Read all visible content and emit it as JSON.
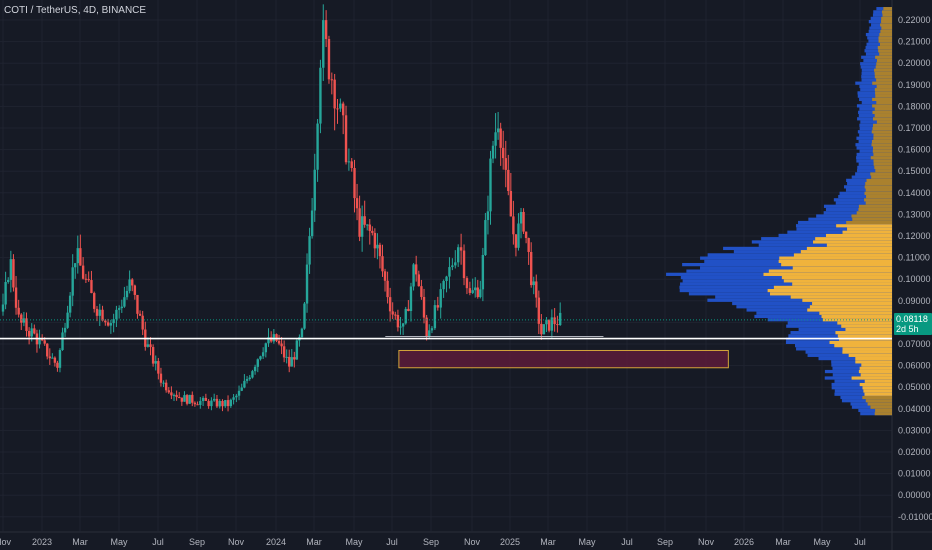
{
  "header": {
    "symbol_title": "COTI / TetherUS, 4D, BINANCE"
  },
  "price_label": {
    "value": "0.08118",
    "countdown": "2d 5h"
  },
  "colors": {
    "background": "#161a25",
    "grid": "#1f2330",
    "up_candle": "#26a69a",
    "down_candle": "#ef5350",
    "volume_profile_blue": "#2151c6",
    "volume_profile_orange": "#e5a01e",
    "value_area_highlight": "#f0b33c",
    "support_line": "#ffffff",
    "zone_fill": "#5c1c3a",
    "zone_border": "#d4a53a",
    "price_tag": "#089981"
  },
  "chart_data": {
    "type": "candlestick",
    "title": "COTI / TetherUS, 4D, BINANCE",
    "x_axis": {
      "tick_labels": [
        "Nov",
        "2023",
        "Mar",
        "May",
        "Jul",
        "Sep",
        "Nov",
        "2024",
        "Mar",
        "May",
        "Jul",
        "Sep",
        "Nov",
        "2025",
        "Mar",
        "May",
        "Jul",
        "Sep",
        "Nov",
        "2026",
        "Mar",
        "May",
        "Jul"
      ]
    },
    "y_axis": {
      "range": [
        -0.012,
        0.226
      ],
      "tick_labels": [
        "0.22000",
        "0.21000",
        "0.20000",
        "0.19000",
        "0.18000",
        "0.17000",
        "0.16000",
        "0.15000",
        "0.14000",
        "0.13000",
        "0.12000",
        "0.11000",
        "0.10000",
        "0.09000",
        "0.08000",
        "0.07000",
        "0.06000",
        "0.05000",
        "0.04000",
        "0.03000",
        "0.02000",
        "0.01000",
        "0.00000",
        "-0.01000"
      ]
    },
    "price_keypoints": [
      [
        2022.83,
        0.085
      ],
      [
        2022.86,
        0.11
      ],
      [
        2022.9,
        0.08
      ],
      [
        2022.96,
        0.075
      ],
      [
        2023.03,
        0.065
      ],
      [
        2023.07,
        0.06
      ],
      [
        2023.15,
        0.112
      ],
      [
        2023.23,
        0.088
      ],
      [
        2023.3,
        0.08
      ],
      [
        2023.38,
        0.098
      ],
      [
        2023.45,
        0.07
      ],
      [
        2023.52,
        0.052
      ],
      [
        2023.6,
        0.045
      ],
      [
        2023.7,
        0.043
      ],
      [
        2023.8,
        0.042
      ],
      [
        2023.85,
        0.048
      ],
      [
        2023.95,
        0.07
      ],
      [
        2024.0,
        0.072
      ],
      [
        2024.06,
        0.06
      ],
      [
        2024.12,
        0.075
      ],
      [
        2024.17,
        0.15
      ],
      [
        2024.2,
        0.215
      ],
      [
        2024.25,
        0.19
      ],
      [
        2024.3,
        0.16
      ],
      [
        2024.35,
        0.125
      ],
      [
        2024.42,
        0.12
      ],
      [
        2024.5,
        0.085
      ],
      [
        2024.55,
        0.076
      ],
      [
        2024.6,
        0.108
      ],
      [
        2024.65,
        0.075
      ],
      [
        2024.7,
        0.088
      ],
      [
        2024.78,
        0.118
      ],
      [
        2024.82,
        0.092
      ],
      [
        2024.87,
        0.098
      ],
      [
        2024.92,
        0.16
      ],
      [
        2024.95,
        0.178
      ],
      [
        2024.98,
        0.145
      ],
      [
        2025.02,
        0.118
      ],
      [
        2025.06,
        0.128
      ],
      [
        2025.1,
        0.098
      ],
      [
        2025.14,
        0.075
      ],
      [
        2025.18,
        0.08
      ],
      [
        2025.22,
        0.081
      ]
    ],
    "last_price": 0.08118,
    "support_level": 0.0725,
    "support_short_line": {
      "price": 0.0735,
      "from": 2024.47,
      "to": 2025.4
    },
    "demand_zone": {
      "price_from": 0.059,
      "price_to": 0.067,
      "date_from": 2024.53,
      "date_to": 2025.93
    },
    "volume_profile": {
      "price_range": [
        0.037,
        0.226
      ],
      "value_area": [
        0.045,
        0.125
      ],
      "total_profile": [
        [
          0.037,
          0.03
        ],
        [
          0.045,
          0.052
        ],
        [
          0.055,
          0.06
        ],
        [
          0.06,
          0.055
        ],
        [
          0.065,
          0.085
        ],
        [
          0.07,
          0.105
        ],
        [
          0.075,
          0.09
        ],
        [
          0.082,
          0.12
        ],
        [
          0.09,
          0.17
        ],
        [
          0.1,
          0.21
        ],
        [
          0.108,
          0.19
        ],
        [
          0.116,
          0.13
        ],
        [
          0.125,
          0.085
        ],
        [
          0.135,
          0.055
        ],
        [
          0.15,
          0.035
        ],
        [
          0.17,
          0.03
        ],
        [
          0.19,
          0.032
        ],
        [
          0.21,
          0.024
        ],
        [
          0.22,
          0.02
        ],
        [
          0.226,
          0.014
        ]
      ],
      "orange_fraction": 0.55
    }
  }
}
